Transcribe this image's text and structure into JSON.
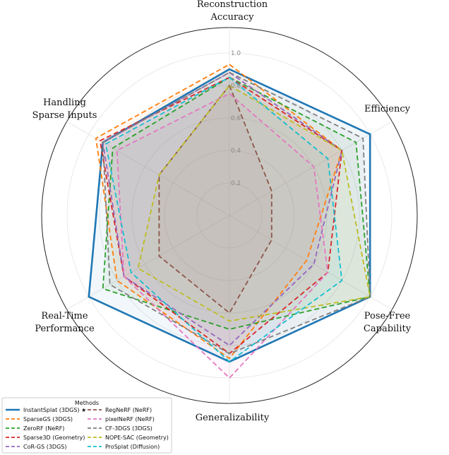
{
  "chart_data": {
    "type": "radar",
    "axes": [
      "Reconstruction Accuracy",
      "Efficiency",
      "Pose-Free Capability",
      "Generalizability",
      "Real-Time Performance",
      "Handling Sparse Inputs"
    ],
    "axis_label_lines": [
      [
        "Reconstruction",
        "Accuracy"
      ],
      [
        "Efficiency"
      ],
      [
        "Pose-Free",
        "Capability"
      ],
      [
        "Generalizability"
      ],
      [
        "Real-Time",
        "Performance"
      ],
      [
        "Handling",
        "Sparse Inputs"
      ]
    ],
    "rlim": [
      0,
      1.0
    ],
    "r_ticks": [
      0.2,
      0.4,
      0.6,
      0.8,
      1.0
    ],
    "r_tick_labels": [
      "0.2",
      "0.4",
      "0.6",
      "0.8",
      "1.0"
    ],
    "grid": true,
    "legend": {
      "title": "Methods",
      "placement": "bottom-left",
      "columns": 2
    },
    "series": [
      {
        "name": "InstantSplat (3DGS) ★",
        "color": "#1f77b4",
        "style": "solid",
        "values": [
          0.9,
          1.0,
          1.0,
          0.9,
          1.0,
          0.9
        ]
      },
      {
        "name": "SparseGS (3DGS)",
        "color": "#ff7f0e",
        "style": "dashed",
        "values": [
          0.93,
          0.8,
          0.55,
          0.88,
          0.8,
          0.95
        ]
      },
      {
        "name": "ZeroRF (NeRF)",
        "color": "#2ca02c",
        "style": "dashed",
        "values": [
          0.85,
          0.9,
          1.0,
          0.7,
          0.9,
          0.83
        ]
      },
      {
        "name": "Sparse3D (Geometry)",
        "color": "#d62728",
        "style": "dashed",
        "values": [
          0.85,
          0.8,
          0.7,
          0.85,
          0.75,
          0.92
        ]
      },
      {
        "name": "CoR-GS (3DGS)",
        "color": "#9467bd",
        "style": "dashed",
        "values": [
          0.88,
          0.8,
          0.6,
          0.8,
          0.75,
          0.9
        ]
      },
      {
        "name": "RegNeRF (NeRF)",
        "color": "#8c564b",
        "style": "dashed",
        "values": [
          0.8,
          0.3,
          0.3,
          0.6,
          0.5,
          0.5
        ]
      },
      {
        "name": "pixelNeRF (NeRF)",
        "color": "#e377c2",
        "style": "dashed",
        "values": [
          0.75,
          0.6,
          0.7,
          1.0,
          0.75,
          0.8
        ]
      },
      {
        "name": "CF-3DGS (3DGS)",
        "color": "#7f7f7f",
        "style": "dashed",
        "values": [
          0.88,
          0.95,
          1.0,
          0.85,
          0.85,
          0.9
        ]
      },
      {
        "name": "NOPE-SAC (Geometry)",
        "color": "#bcbd22",
        "style": "dashed",
        "values": [
          0.8,
          0.8,
          1.0,
          0.65,
          0.65,
          0.5
        ]
      },
      {
        "name": "ProSplat (Diffusion)",
        "color": "#17becf",
        "style": "dashed",
        "values": [
          0.85,
          0.7,
          0.8,
          0.9,
          0.7,
          0.88
        ]
      }
    ]
  }
}
